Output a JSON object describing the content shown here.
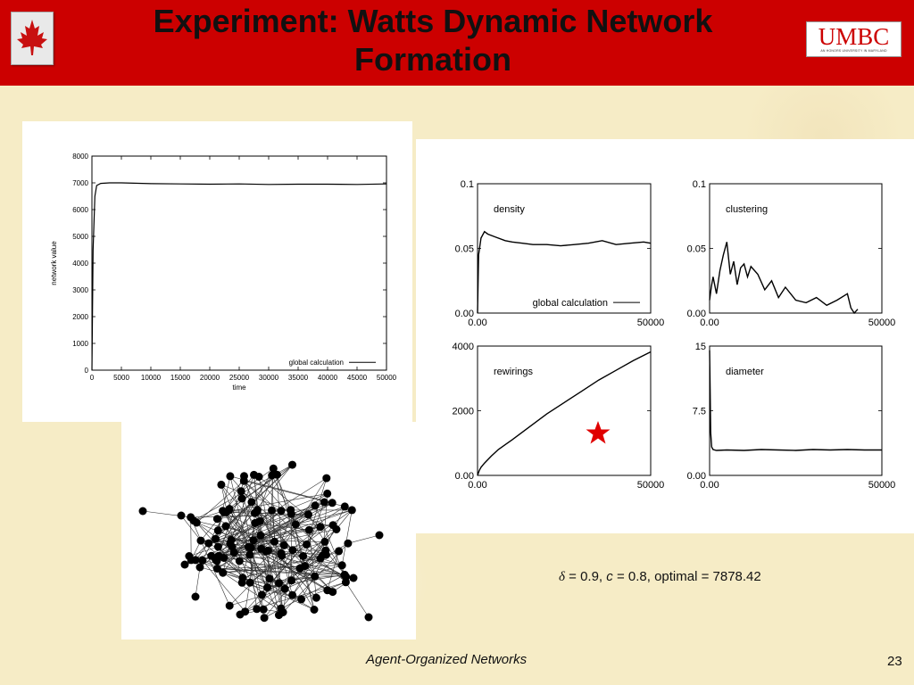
{
  "slide": {
    "title": "Experiment: Watts Dynamic Network Formation",
    "footer": "Agent-Organized Networks",
    "page_number": "23",
    "logo_text": "UMBC",
    "logo_subtitle": "AN HONORS UNIVERSITY IN MARYLAND",
    "params": {
      "delta_symbol": "δ",
      "delta_text": " = 0.9, ",
      "c_symbol": "c",
      "c_text": " = 0.8, optimal =  7878.42"
    },
    "colors": {
      "header": "#cc0000",
      "star": "#e00000",
      "background": "#f6ecc6"
    },
    "icons": [
      "maple-leaf-icon",
      "star-icon"
    ]
  },
  "chart_data": [
    {
      "id": "network-value",
      "type": "line",
      "xlabel": "time",
      "ylabel": "network value",
      "xlim": [
        0,
        50000
      ],
      "ylim": [
        0,
        8000
      ],
      "x_ticks": [
        "0",
        "5000",
        "10000",
        "15000",
        "20000",
        "25000",
        "30000",
        "35000",
        "40000",
        "45000",
        "50000"
      ],
      "y_ticks": [
        "0",
        "1000",
        "2000",
        "3000",
        "4000",
        "5000",
        "6000",
        "7000",
        "8000"
      ],
      "legend": "global calculation",
      "legend_position": "bottom-right",
      "series": [
        {
          "name": "global calculation",
          "x": [
            0,
            200,
            500,
            800,
            1500,
            3000,
            5000,
            10000,
            15000,
            20000,
            25000,
            30000,
            35000,
            40000,
            45000,
            50000
          ],
          "y": [
            0,
            4500,
            6500,
            6900,
            6980,
            7000,
            7000,
            6970,
            6960,
            6950,
            6960,
            6940,
            6950,
            6950,
            6940,
            6960
          ]
        }
      ]
    },
    {
      "id": "density",
      "type": "line",
      "label": "density",
      "xlim": [
        0,
        50000
      ],
      "ylim": [
        0,
        0.1
      ],
      "x_ticks": [
        "0.00",
        "50000"
      ],
      "y_ticks": [
        "0.00",
        "0.05",
        "0.1"
      ],
      "legend": "global calculation",
      "legend_position": "bottom-right",
      "series": [
        {
          "name": "global calculation",
          "x": [
            0,
            300,
            1000,
            2000,
            3000,
            5000,
            8000,
            10000,
            13000,
            16000,
            20000,
            24000,
            28000,
            32000,
            36000,
            40000,
            44000,
            48000,
            50000
          ],
          "y": [
            0,
            0.045,
            0.058,
            0.063,
            0.061,
            0.059,
            0.056,
            0.055,
            0.054,
            0.053,
            0.053,
            0.052,
            0.053,
            0.054,
            0.056,
            0.053,
            0.054,
            0.055,
            0.054
          ]
        }
      ]
    },
    {
      "id": "clustering",
      "type": "line",
      "label": "clustering",
      "xlim": [
        0,
        50000
      ],
      "ylim": [
        0,
        0.1
      ],
      "x_ticks": [
        "0.00",
        "50000"
      ],
      "y_ticks": [
        "0.00",
        "0.05",
        "0.1"
      ],
      "series": [
        {
          "x": [
            0,
            500,
            1000,
            2000,
            3000,
            4000,
            5000,
            6000,
            7000,
            8000,
            9000,
            10000,
            11000,
            12000,
            14000,
            16000,
            18000,
            20000,
            22000,
            25000,
            28000,
            31000,
            34000,
            37000,
            40000,
            41000,
            42000,
            43000
          ],
          "y": [
            0.01,
            0.02,
            0.028,
            0.015,
            0.033,
            0.045,
            0.055,
            0.03,
            0.04,
            0.022,
            0.035,
            0.038,
            0.028,
            0.036,
            0.03,
            0.018,
            0.025,
            0.012,
            0.02,
            0.01,
            0.008,
            0.012,
            0.006,
            0.01,
            0.015,
            0.004,
            0.0,
            0.003
          ]
        }
      ]
    },
    {
      "id": "rewirings",
      "type": "line",
      "label": "rewirings",
      "xlim": [
        0,
        50000
      ],
      "ylim": [
        0,
        4000
      ],
      "x_ticks": [
        "0.00",
        "50000"
      ],
      "y_ticks": [
        "0.00",
        "2000",
        "4000"
      ],
      "series": [
        {
          "x": [
            0,
            500,
            1000,
            2000,
            4000,
            6000,
            8000,
            10000,
            15000,
            20000,
            25000,
            30000,
            35000,
            40000,
            45000,
            50000
          ],
          "y": [
            0,
            150,
            250,
            380,
            600,
            800,
            950,
            1100,
            1500,
            1900,
            2250,
            2600,
            2950,
            3250,
            3550,
            3820
          ]
        }
      ]
    },
    {
      "id": "diameter",
      "type": "line",
      "label": "diameter",
      "xlim": [
        0,
        50000
      ],
      "ylim": [
        0,
        15
      ],
      "x_ticks": [
        "0.00",
        "50000"
      ],
      "y_ticks": [
        "0.00",
        "7.5",
        "15"
      ],
      "series": [
        {
          "x": [
            0,
            150,
            300,
            600,
            1000,
            2000,
            5000,
            10000,
            15000,
            20000,
            25000,
            30000,
            35000,
            40000,
            45000,
            50000
          ],
          "y": [
            14.5,
            10,
            5,
            3.3,
            3.0,
            2.9,
            2.95,
            2.9,
            3.0,
            2.95,
            2.9,
            3.0,
            2.95,
            3.0,
            2.95,
            2.95
          ]
        }
      ]
    }
  ]
}
